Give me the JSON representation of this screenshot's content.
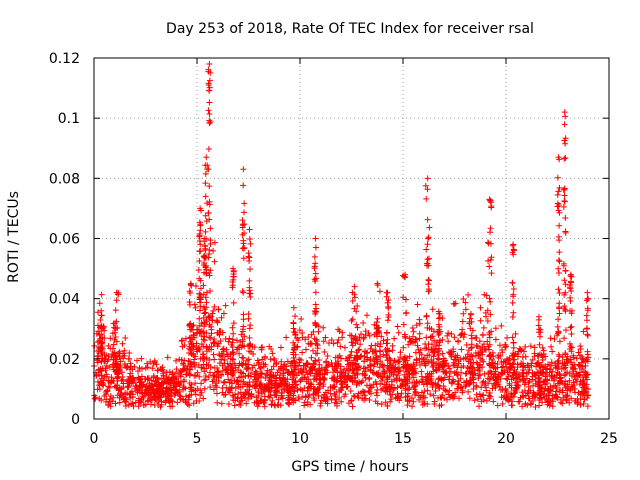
{
  "chart_data": {
    "type": "scatter",
    "title": "Day 253 of 2018, Rate Of TEC Index for receiver rsal",
    "xlabel": "GPS time / hours",
    "ylabel": "ROTI / TECUs",
    "xlim": [
      0,
      25
    ],
    "ylim": [
      0,
      0.12
    ],
    "x_ticks": [
      "0",
      "5",
      "10",
      "15",
      "20",
      "25"
    ],
    "y_ticks": [
      "0",
      "0.02",
      "0.04",
      "0.06",
      "0.08",
      "0.1",
      "0.12"
    ],
    "grid": true,
    "marker": "plus",
    "color": "#ff0000",
    "baseline": [
      [
        0,
        0.012
      ],
      [
        0.3,
        0.02
      ],
      [
        0.6,
        0.012
      ],
      [
        1.0,
        0.015
      ],
      [
        1.5,
        0.012
      ],
      [
        2.0,
        0.008
      ],
      [
        3.0,
        0.007
      ],
      [
        4.0,
        0.009
      ],
      [
        4.6,
        0.015
      ],
      [
        5.0,
        0.022
      ],
      [
        5.5,
        0.03
      ],
      [
        6.0,
        0.025
      ],
      [
        6.5,
        0.015
      ],
      [
        7.0,
        0.012
      ],
      [
        7.5,
        0.014
      ],
      [
        8.0,
        0.01
      ],
      [
        9.0,
        0.01
      ],
      [
        9.5,
        0.012
      ],
      [
        10.0,
        0.015
      ],
      [
        10.5,
        0.013
      ],
      [
        11.0,
        0.014
      ],
      [
        12.0,
        0.012
      ],
      [
        13.0,
        0.016
      ],
      [
        14.0,
        0.014
      ],
      [
        15.0,
        0.012
      ],
      [
        16.0,
        0.018
      ],
      [
        17.0,
        0.015
      ],
      [
        18.0,
        0.018
      ],
      [
        19.0,
        0.017
      ],
      [
        20.0,
        0.012
      ],
      [
        21.0,
        0.012
      ],
      [
        22.0,
        0.01
      ],
      [
        22.5,
        0.012
      ],
      [
        23.0,
        0.015
      ],
      [
        23.5,
        0.013
      ],
      [
        24.0,
        0.01
      ]
    ],
    "spikes": [
      [
        5.1,
        5.2,
        0.07
      ],
      [
        5.4,
        5.5,
        0.087
      ],
      [
        5.55,
        5.65,
        0.118
      ],
      [
        5.3,
        5.4,
        0.06
      ],
      [
        4.6,
        4.8,
        0.045
      ],
      [
        7.2,
        7.3,
        0.083
      ],
      [
        7.5,
        7.6,
        0.063
      ],
      [
        6.7,
        6.8,
        0.05
      ],
      [
        10.7,
        10.8,
        0.06
      ],
      [
        16.1,
        16.3,
        0.08
      ],
      [
        16.7,
        16.8,
        0.035
      ],
      [
        19.1,
        19.3,
        0.073
      ],
      [
        20.3,
        20.4,
        0.058
      ],
      [
        21.5,
        21.7,
        0.034
      ],
      [
        22.5,
        22.6,
        0.087
      ],
      [
        22.8,
        22.9,
        0.102
      ],
      [
        23.1,
        23.2,
        0.048
      ],
      [
        23.9,
        24.0,
        0.042
      ],
      [
        14.2,
        14.3,
        0.042
      ],
      [
        15.0,
        15.2,
        0.048
      ],
      [
        12.5,
        12.8,
        0.044
      ],
      [
        1.0,
        1.2,
        0.042
      ],
      [
        0.3,
        0.4,
        0.036
      ],
      [
        9.6,
        9.8,
        0.037
      ],
      [
        18.2,
        18.4,
        0.035
      ],
      [
        13.6,
        13.9,
        0.045
      ]
    ]
  }
}
